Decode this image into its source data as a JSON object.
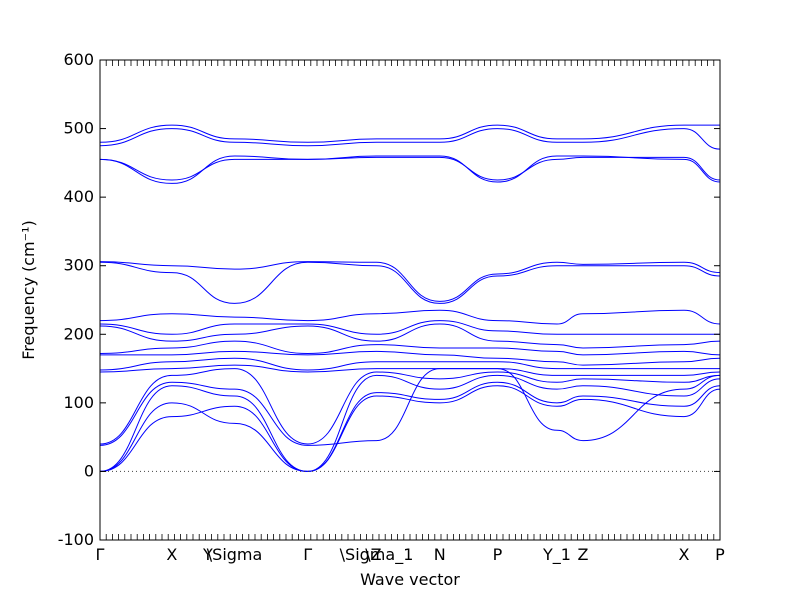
{
  "chart_data": {
    "type": "line",
    "xlabel": "Wave vector",
    "ylabel": "Frequency (cm⁻¹)",
    "ylim": [
      -100,
      600
    ],
    "yticks": [
      -100,
      0,
      100,
      200,
      300,
      400,
      500,
      600
    ],
    "grid": false,
    "zero_line": {
      "y": 0,
      "style": "dotted"
    },
    "x_tick_labels": [
      "Γ",
      "X",
      "Y",
      "\\Sigma",
      "Γ",
      "\\Z",
      "\\Sigma_1",
      "N",
      "P",
      "Y_1",
      "Z",
      "X",
      "P"
    ],
    "path_positions": [
      0,
      0.116,
      0.174,
      0.217,
      0.335,
      0.441,
      0.446,
      0.548,
      0.641,
      0.737,
      0.779,
      0.942,
      1.0
    ],
    "color": "#0000ff",
    "series": [
      {
        "x": [
          0,
          0.116,
          0.217,
          0.335,
          0.446,
          0.548,
          0.641,
          0.737,
          0.779,
          0.942,
          1.0
        ],
        "y": [
          0,
          80,
          95,
          0,
          110,
          100,
          125,
          95,
          105,
          80,
          120
        ]
      },
      {
        "x": [
          0,
          0.116,
          0.217,
          0.335,
          0.446,
          0.548,
          0.641,
          0.737,
          0.779,
          0.942,
          1.0
        ],
        "y": [
          0,
          100,
          70,
          0,
          115,
          105,
          130,
          100,
          110,
          95,
          125
        ]
      },
      {
        "x": [
          0,
          0.116,
          0.217,
          0.335,
          0.446,
          0.548,
          0.641,
          0.737,
          0.779,
          0.942,
          1.0
        ],
        "y": [
          0,
          125,
          110,
          0,
          140,
          120,
          140,
          120,
          125,
          110,
          135
        ]
      },
      {
        "x": [
          0,
          0.116,
          0.217,
          0.335,
          0.446,
          0.548,
          0.641,
          0.737,
          0.779,
          0.942,
          1.0
        ],
        "y": [
          38,
          130,
          120,
          38,
          45,
          150,
          150,
          60,
          45,
          120,
          140
        ]
      },
      {
        "x": [
          0,
          0.116,
          0.217,
          0.335,
          0.446,
          0.548,
          0.641,
          0.737,
          0.779,
          0.942,
          1.0
        ],
        "y": [
          40,
          140,
          150,
          40,
          145,
          135,
          145,
          130,
          135,
          130,
          140
        ]
      },
      {
        "x": [
          0,
          0.116,
          0.217,
          0.335,
          0.446,
          0.548,
          0.641,
          0.737,
          0.779,
          0.942,
          1.0
        ],
        "y": [
          145,
          150,
          155,
          145,
          150,
          150,
          150,
          140,
          140,
          140,
          145
        ]
      },
      {
        "x": [
          0,
          0.116,
          0.217,
          0.335,
          0.446,
          0.548,
          0.641,
          0.737,
          0.779,
          0.942,
          1.0
        ],
        "y": [
          148,
          160,
          165,
          148,
          160,
          160,
          160,
          150,
          150,
          150,
          150
        ]
      },
      {
        "x": [
          0,
          0.116,
          0.217,
          0.335,
          0.446,
          0.548,
          0.641,
          0.737,
          0.779,
          0.942,
          1.0
        ],
        "y": [
          170,
          170,
          175,
          170,
          175,
          170,
          165,
          160,
          155,
          160,
          165
        ]
      },
      {
        "x": [
          0,
          0.116,
          0.217,
          0.335,
          0.446,
          0.548,
          0.641,
          0.737,
          0.779,
          0.942,
          1.0
        ],
        "y": [
          172,
          180,
          190,
          172,
          185,
          180,
          180,
          175,
          170,
          175,
          170
        ]
      },
      {
        "x": [
          0,
          0.116,
          0.217,
          0.335,
          0.446,
          0.548,
          0.641,
          0.737,
          0.779,
          0.942,
          1.0
        ],
        "y": [
          212,
          190,
          200,
          212,
          190,
          215,
          190,
          185,
          180,
          185,
          190
        ]
      },
      {
        "x": [
          0,
          0.116,
          0.217,
          0.335,
          0.446,
          0.548,
          0.641,
          0.737,
          0.779,
          0.942,
          1.0
        ],
        "y": [
          215,
          200,
          215,
          215,
          200,
          220,
          205,
          200,
          200,
          200,
          200
        ]
      },
      {
        "x": [
          0,
          0.116,
          0.217,
          0.335,
          0.446,
          0.548,
          0.641,
          0.737,
          0.779,
          0.942,
          1.0
        ],
        "y": [
          220,
          230,
          225,
          220,
          230,
          235,
          220,
          215,
          230,
          235,
          215
        ]
      },
      {
        "x": [
          0,
          0.116,
          0.217,
          0.335,
          0.446,
          0.548,
          0.641,
          0.737,
          0.779,
          0.942,
          1.0
        ],
        "y": [
          305,
          290,
          245,
          305,
          300,
          245,
          285,
          300,
          300,
          300,
          285
        ]
      },
      {
        "x": [
          0,
          0.116,
          0.217,
          0.335,
          0.446,
          0.548,
          0.641,
          0.737,
          0.779,
          0.942,
          1.0
        ],
        "y": [
          306,
          300,
          295,
          306,
          305,
          248,
          288,
          305,
          302,
          305,
          290
        ]
      },
      {
        "x": [
          0,
          0.116,
          0.217,
          0.335,
          0.446,
          0.548,
          0.641,
          0.737,
          0.779,
          0.942,
          1.0
        ],
        "y": [
          455,
          425,
          455,
          455,
          458,
          458,
          425,
          455,
          458,
          458,
          425
        ]
      },
      {
        "x": [
          0,
          0.116,
          0.217,
          0.335,
          0.446,
          0.548,
          0.641,
          0.737,
          0.779,
          0.942,
          1.0
        ],
        "y": [
          455,
          420,
          460,
          455,
          460,
          460,
          422,
          460,
          460,
          455,
          422
        ]
      },
      {
        "x": [
          0,
          0.116,
          0.217,
          0.335,
          0.446,
          0.548,
          0.641,
          0.737,
          0.779,
          0.942,
          1.0
        ],
        "y": [
          475,
          500,
          480,
          475,
          480,
          480,
          500,
          480,
          480,
          500,
          470
        ]
      },
      {
        "x": [
          0,
          0.116,
          0.217,
          0.335,
          0.446,
          0.548,
          0.641,
          0.737,
          0.779,
          0.942,
          1.0
        ],
        "y": [
          480,
          505,
          485,
          480,
          485,
          485,
          505,
          485,
          485,
          505,
          505
        ]
      }
    ]
  }
}
